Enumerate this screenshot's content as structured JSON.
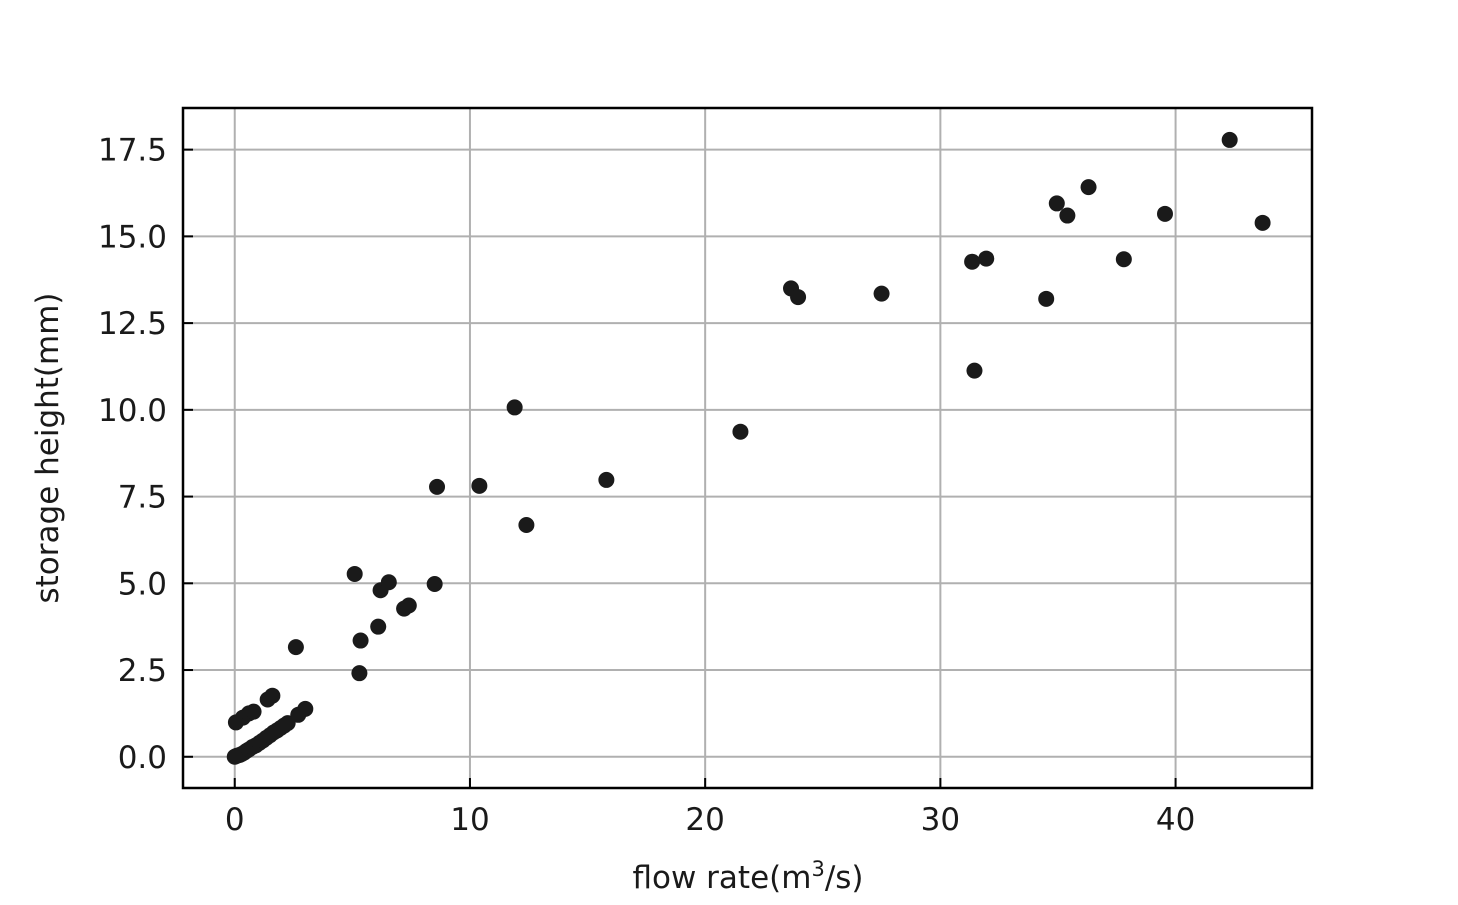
{
  "chart_data": {
    "type": "scatter",
    "title": "",
    "xlabel": "flow rate(m",
    "xlabel_superscript": "3",
    "xlabel_suffix": "/s)",
    "ylabel": "storage height(mm)",
    "xlim": [
      -2.2,
      45.8
    ],
    "ylim": [
      -0.9,
      18.7
    ],
    "xticks": [
      0,
      10,
      20,
      30,
      40
    ],
    "yticks": [
      0.0,
      2.5,
      5.0,
      7.5,
      10.0,
      12.5,
      15.0,
      17.5
    ],
    "xtick_labels": [
      "0",
      "10",
      "20",
      "30",
      "40"
    ],
    "ytick_labels": [
      "0.0",
      "2.5",
      "5.0",
      "7.5",
      "10.0",
      "12.5",
      "15.0",
      "17.5"
    ],
    "grid": true,
    "marker_color": "#1a1a1a",
    "grid_color": "#b0b0b0",
    "points": [
      {
        "x": 0.0,
        "y": 0.0
      },
      {
        "x": 0.05,
        "y": 0.02
      },
      {
        "x": 0.1,
        "y": 0.03
      },
      {
        "x": 0.2,
        "y": 0.05
      },
      {
        "x": 0.3,
        "y": 0.08
      },
      {
        "x": 0.4,
        "y": 0.12
      },
      {
        "x": 0.5,
        "y": 0.17
      },
      {
        "x": 0.6,
        "y": 0.21
      },
      {
        "x": 0.75,
        "y": 0.28
      },
      {
        "x": 0.9,
        "y": 0.33
      },
      {
        "x": 1.05,
        "y": 0.4
      },
      {
        "x": 1.2,
        "y": 0.47
      },
      {
        "x": 1.35,
        "y": 0.55
      },
      {
        "x": 1.5,
        "y": 0.62
      },
      {
        "x": 1.65,
        "y": 0.7
      },
      {
        "x": 1.8,
        "y": 0.76
      },
      {
        "x": 1.95,
        "y": 0.83
      },
      {
        "x": 2.1,
        "y": 0.9
      },
      {
        "x": 2.25,
        "y": 0.97
      },
      {
        "x": 2.7,
        "y": 1.21
      },
      {
        "x": 3.0,
        "y": 1.38
      },
      {
        "x": 0.05,
        "y": 0.99
      },
      {
        "x": 0.35,
        "y": 1.13
      },
      {
        "x": 0.6,
        "y": 1.25
      },
      {
        "x": 0.8,
        "y": 1.3
      },
      {
        "x": 1.4,
        "y": 1.65
      },
      {
        "x": 1.6,
        "y": 1.76
      },
      {
        "x": 2.6,
        "y": 3.16
      },
      {
        "x": 5.1,
        "y": 5.27
      },
      {
        "x": 5.3,
        "y": 2.41
      },
      {
        "x": 5.35,
        "y": 3.35
      },
      {
        "x": 6.1,
        "y": 3.75
      },
      {
        "x": 6.2,
        "y": 4.8
      },
      {
        "x": 6.55,
        "y": 5.03
      },
      {
        "x": 7.2,
        "y": 4.27
      },
      {
        "x": 7.4,
        "y": 4.36
      },
      {
        "x": 8.5,
        "y": 4.98
      },
      {
        "x": 8.6,
        "y": 7.78
      },
      {
        "x": 10.4,
        "y": 7.81
      },
      {
        "x": 11.9,
        "y": 10.07
      },
      {
        "x": 12.4,
        "y": 6.68
      },
      {
        "x": 15.8,
        "y": 7.98
      },
      {
        "x": 21.5,
        "y": 9.37
      },
      {
        "x": 23.65,
        "y": 13.5
      },
      {
        "x": 23.95,
        "y": 13.25
      },
      {
        "x": 27.5,
        "y": 13.35
      },
      {
        "x": 31.35,
        "y": 14.27
      },
      {
        "x": 31.45,
        "y": 11.13
      },
      {
        "x": 31.95,
        "y": 14.36
      },
      {
        "x": 34.5,
        "y": 13.2
      },
      {
        "x": 34.95,
        "y": 15.95
      },
      {
        "x": 35.4,
        "y": 15.6
      },
      {
        "x": 36.3,
        "y": 16.42
      },
      {
        "x": 37.8,
        "y": 14.34
      },
      {
        "x": 39.55,
        "y": 15.65
      },
      {
        "x": 42.3,
        "y": 17.78
      },
      {
        "x": 43.7,
        "y": 15.39
      }
    ]
  }
}
